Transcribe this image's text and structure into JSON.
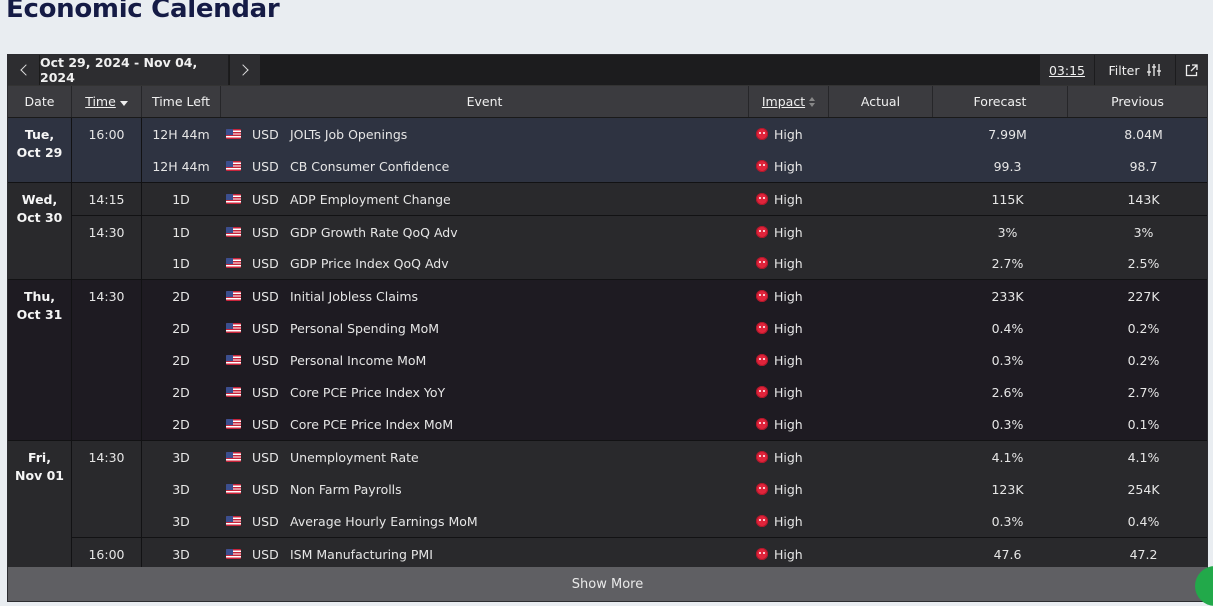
{
  "page_title": "Economic Calendar",
  "toolbar": {
    "date_range": "Oct 29, 2024 - Nov 04, 2024",
    "clock": "03:15",
    "filter_label": "Filter"
  },
  "columns": {
    "date": "Date",
    "time": "Time",
    "time_left": "Time Left",
    "event": "Event",
    "impact": "Impact",
    "actual": "Actual",
    "forecast": "Forecast",
    "previous": "Previous"
  },
  "days": [
    {
      "day": "Tue,",
      "date": "Oct 29",
      "bg": "#2e3341",
      "rows": [
        {
          "time": "16:00",
          "left": "12H 44m",
          "cur": "USD",
          "event": "JOLTs Job Openings",
          "impact": "High",
          "actual": "",
          "forecast": "7.99M",
          "previous": "8.04M"
        },
        {
          "time": "",
          "left": "12H 44m",
          "cur": "USD",
          "event": "CB Consumer Confidence",
          "impact": "High",
          "actual": "",
          "forecast": "99.3",
          "previous": "98.7"
        }
      ]
    },
    {
      "day": "Wed,",
      "date": "Oct 30",
      "bg": "#29292c",
      "rows": [
        {
          "time": "14:15",
          "left": "1D",
          "cur": "USD",
          "event": "ADP Employment Change",
          "impact": "High",
          "actual": "",
          "forecast": "115K",
          "previous": "143K"
        },
        {
          "time": "14:30",
          "left": "1D",
          "cur": "USD",
          "event": "GDP Growth Rate QoQ Adv",
          "impact": "High",
          "actual": "",
          "forecast": "3%",
          "previous": "3%"
        },
        {
          "time": "",
          "left": "1D",
          "cur": "USD",
          "event": "GDP Price Index QoQ Adv",
          "impact": "High",
          "actual": "",
          "forecast": "2.7%",
          "previous": "2.5%"
        }
      ]
    },
    {
      "day": "Thu,",
      "date": "Oct 31",
      "bg": "#1e1b22",
      "rows": [
        {
          "time": "14:30",
          "left": "2D",
          "cur": "USD",
          "event": "Initial Jobless Claims",
          "impact": "High",
          "actual": "",
          "forecast": "233K",
          "previous": "227K"
        },
        {
          "time": "",
          "left": "2D",
          "cur": "USD",
          "event": "Personal Spending MoM",
          "impact": "High",
          "actual": "",
          "forecast": "0.4%",
          "previous": "0.2%"
        },
        {
          "time": "",
          "left": "2D",
          "cur": "USD",
          "event": "Personal Income MoM",
          "impact": "High",
          "actual": "",
          "forecast": "0.3%",
          "previous": "0.2%"
        },
        {
          "time": "",
          "left": "2D",
          "cur": "USD",
          "event": "Core PCE Price Index YoY",
          "impact": "High",
          "actual": "",
          "forecast": "2.6%",
          "previous": "2.7%"
        },
        {
          "time": "",
          "left": "2D",
          "cur": "USD",
          "event": "Core PCE Price Index MoM",
          "impact": "High",
          "actual": "",
          "forecast": "0.3%",
          "previous": "0.1%"
        }
      ]
    },
    {
      "day": "Fri,",
      "date": "Nov 01",
      "bg": "#29292c",
      "rows": [
        {
          "time": "14:30",
          "left": "3D",
          "cur": "USD",
          "event": "Unemployment Rate",
          "impact": "High",
          "actual": "",
          "forecast": "4.1%",
          "previous": "4.1%"
        },
        {
          "time": "",
          "left": "3D",
          "cur": "USD",
          "event": "Non Farm Payrolls",
          "impact": "High",
          "actual": "",
          "forecast": "123K",
          "previous": "254K"
        },
        {
          "time": "",
          "left": "3D",
          "cur": "USD",
          "event": "Average Hourly Earnings MoM",
          "impact": "High",
          "actual": "",
          "forecast": "0.3%",
          "previous": "0.4%"
        },
        {
          "time": "16:00",
          "left": "3D",
          "cur": "USD",
          "event": "ISM Manufacturing PMI",
          "impact": "High",
          "actual": "",
          "forecast": "47.6",
          "previous": "47.2"
        }
      ]
    }
  ],
  "show_more": "Show More"
}
